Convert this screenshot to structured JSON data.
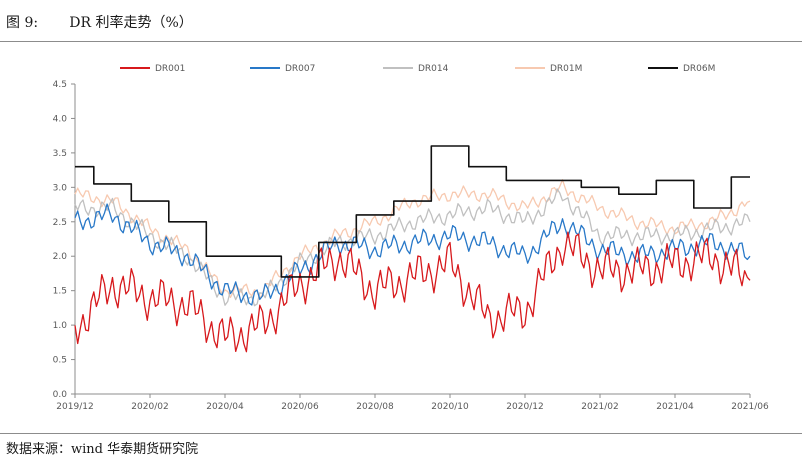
{
  "figure": {
    "title": "图 9:       DR 利率走势（%）",
    "source": "数据来源：wind 华泰期货研究院"
  },
  "chart_data": {
    "type": "line",
    "title": "",
    "xlabel": "",
    "ylabel": "",
    "ylim": [
      0.0,
      4.5
    ],
    "yticks": [
      "0.0",
      "0.5",
      "1.0",
      "1.5",
      "2.0",
      "2.5",
      "3.0",
      "3.5",
      "4.0",
      "4.5"
    ],
    "xticks": [
      "2019/12",
      "2020/02",
      "2020/04",
      "2020/06",
      "2020/08",
      "2020/10",
      "2020/12",
      "2021/02",
      "2021/04",
      "2021/06"
    ],
    "grid": false,
    "legend_position": "top",
    "x": [
      "2019/12",
      "2020/01",
      "2020/02",
      "2020/03",
      "2020/04",
      "2020/05",
      "2020/06",
      "2020/07",
      "2020/08",
      "2020/09",
      "2020/10",
      "2020/11",
      "2020/12",
      "2021/01",
      "2021/02",
      "2021/03",
      "2021/04",
      "2021/05",
      "2021/06"
    ],
    "series": [
      {
        "name": "DR001",
        "color": "#d7191c",
        "values": [
          0.95,
          1.6,
          1.4,
          1.3,
          0.8,
          1.0,
          1.6,
          2.0,
          1.5,
          1.7,
          1.9,
          1.1,
          1.2,
          2.2,
          1.8,
          1.8,
          1.9,
          2.0,
          1.65
        ]
      },
      {
        "name": "DR007",
        "color": "#2878c8",
        "values": [
          2.5,
          2.6,
          2.2,
          2.0,
          1.5,
          1.4,
          1.8,
          2.2,
          2.1,
          2.2,
          2.3,
          2.2,
          2.0,
          2.5,
          2.1,
          2.0,
          2.1,
          2.2,
          2.0
        ]
      },
      {
        "name": "DR014",
        "color": "#c0c0c0",
        "values": [
          2.7,
          2.7,
          2.3,
          2.0,
          1.4,
          1.4,
          1.9,
          2.2,
          2.3,
          2.5,
          2.6,
          2.7,
          2.5,
          2.9,
          2.3,
          2.3,
          2.3,
          2.4,
          2.5
        ]
      },
      {
        "name": "DR01M",
        "color": "#f7c9b0",
        "values": [
          2.9,
          2.8,
          2.4,
          2.1,
          1.5,
          1.5,
          2.0,
          2.3,
          2.5,
          2.8,
          2.9,
          2.9,
          2.7,
          3.0,
          2.7,
          2.5,
          2.4,
          2.5,
          2.8
        ]
      },
      {
        "name": "DR06M",
        "color": "#111111",
        "values": [
          3.3,
          3.05,
          2.8,
          2.5,
          2.0,
          2.0,
          1.7,
          2.2,
          2.6,
          2.8,
          3.6,
          3.3,
          3.1,
          3.1,
          3.0,
          2.9,
          3.1,
          2.7,
          3.15
        ]
      }
    ]
  }
}
